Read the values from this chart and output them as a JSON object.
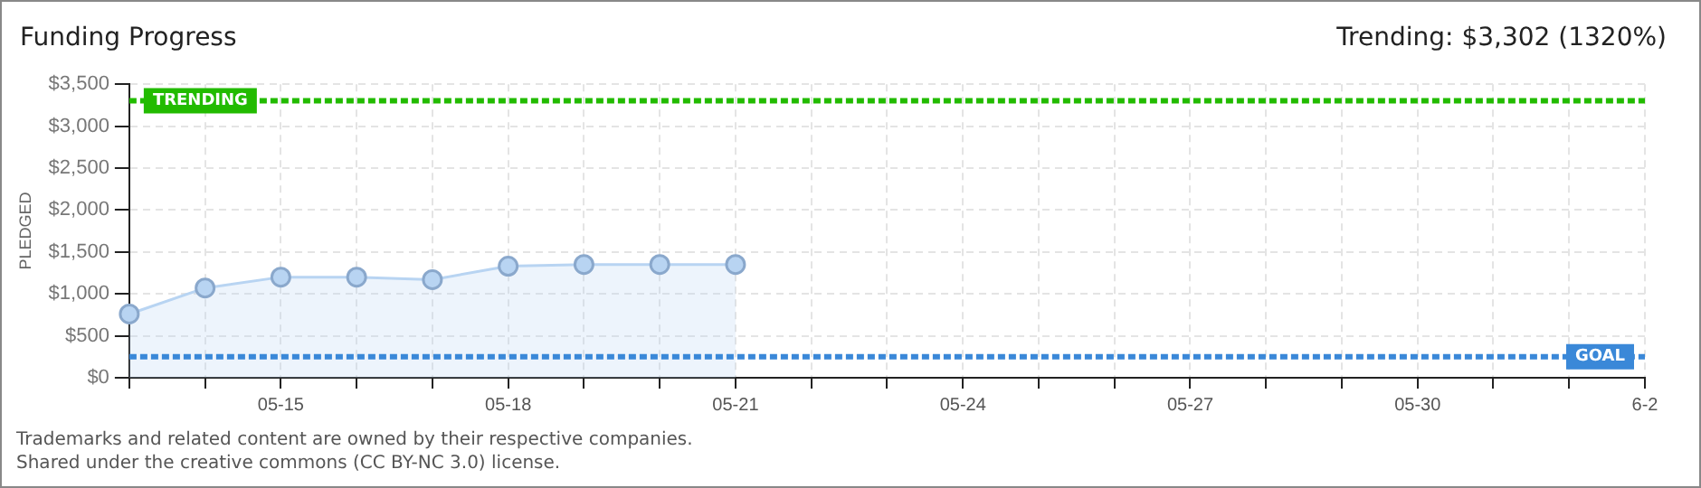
{
  "chart_data": {
    "type": "area",
    "title": "Funding Progress",
    "ylabel": "PLEDGED",
    "categories": [
      null,
      null,
      "05-15",
      null,
      null,
      "05-18",
      null,
      null,
      "05-21",
      null,
      null,
      "05-24",
      null,
      null,
      "05-27",
      null,
      null,
      "05-30",
      null,
      null,
      "6-2"
    ],
    "series": [
      {
        "color": "#b8d4f2",
        "values": [
          760,
          1070,
          1200,
          1200,
          1170,
          1330,
          1350,
          1350,
          1350,
          null,
          null,
          null,
          null,
          null,
          null,
          null,
          null,
          null,
          null,
          null,
          null
        ]
      }
    ],
    "ylim": [
      0,
      3500
    ],
    "yticks": [
      {
        "value": 0,
        "label": "$0"
      },
      {
        "value": 500,
        "label": "$500"
      },
      {
        "value": 1000,
        "label": "$1,000"
      },
      {
        "value": 1500,
        "label": "$1,500"
      },
      {
        "value": 2000,
        "label": "$2,000"
      },
      {
        "value": 2500,
        "label": "$2,500"
      },
      {
        "value": 3000,
        "label": "$3,000"
      },
      {
        "value": 3500,
        "label": "$3,500"
      }
    ],
    "ref_lines": [
      {
        "axis": "y",
        "value": 3302,
        "label": "TRENDING",
        "color": "#22bb00",
        "line_style": "dotted"
      },
      {
        "axis": "y",
        "value": 250,
        "label": "GOAL",
        "color": "#3a88d8",
        "line_style": "dotted"
      }
    ],
    "annotations": [
      "Trending: $3,302 (1320%)",
      "Trademarks and related content are owned by their respective companies.",
      "Shared under the creative commons (CC BY-NC 3.0) license."
    ],
    "grid": true,
    "marker": "circle",
    "legend": false
  }
}
